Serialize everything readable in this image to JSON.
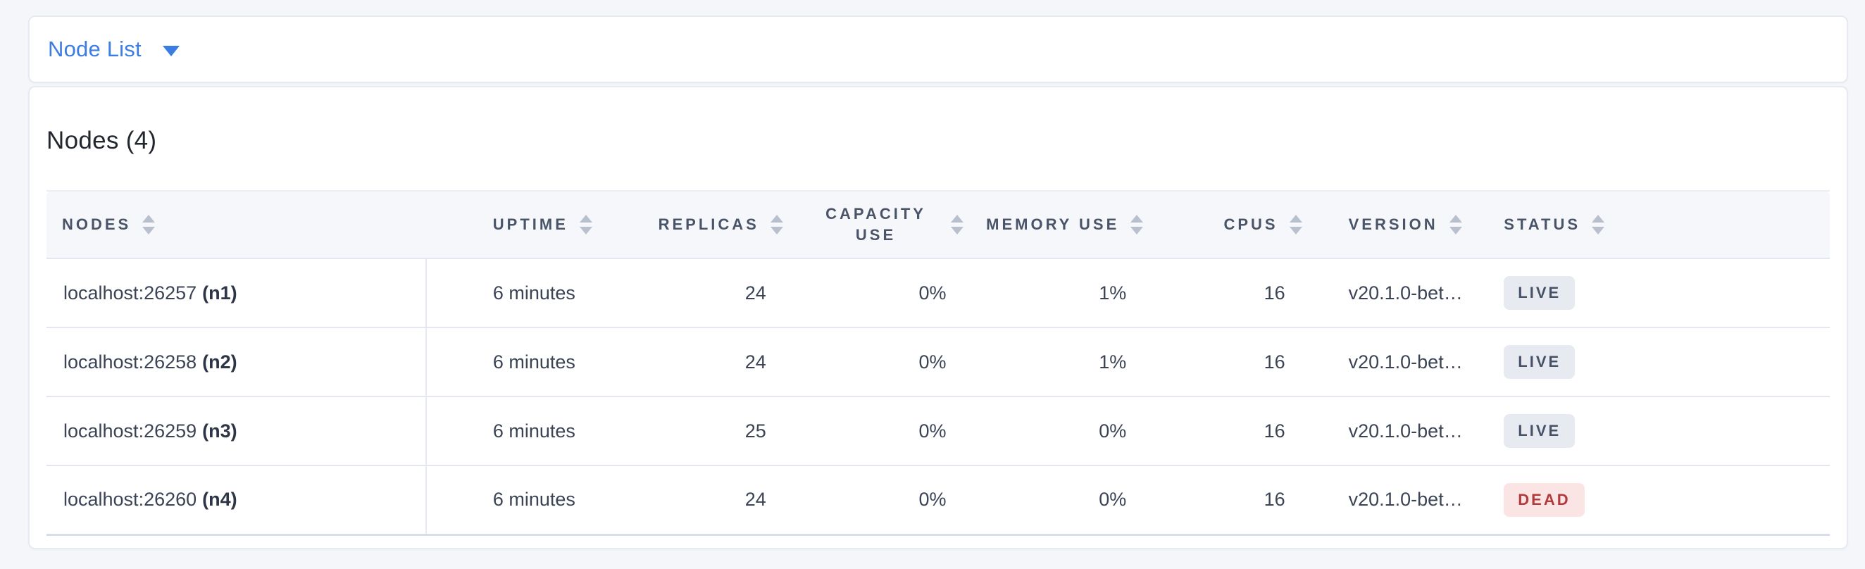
{
  "colors": {
    "page_background": "#f4f6f9",
    "accent_blue": "#3b7de2",
    "header_text": "#4a5468",
    "live_badge_bg": "#e7eaf1",
    "live_badge_text": "#475266",
    "dead_badge_bg": "#fbe5e4",
    "dead_badge_text": "#b23a3d"
  },
  "icons": {
    "caret_down": "caret-down",
    "sort": "sort-arrows"
  },
  "topbar": {
    "view_selector_label": "Node List"
  },
  "main": {
    "heading": "Nodes (4)",
    "table": {
      "columns": [
        {
          "label": "NODES"
        },
        {
          "label": "UPTIME"
        },
        {
          "label": "REPLICAS"
        },
        {
          "label": "CAPACITY USE"
        },
        {
          "label": "MEMORY USE"
        },
        {
          "label": "CPUS"
        },
        {
          "label": "VERSION"
        },
        {
          "label": "STATUS"
        }
      ],
      "rows": [
        {
          "node_address": "localhost:26257",
          "node_id": "(n1)",
          "uptime": "6 minutes",
          "replicas": "24",
          "capacity_use": "0%",
          "memory_use": "1%",
          "cpus": "16",
          "version": "v20.1.0-bet…",
          "status": "LIVE"
        },
        {
          "node_address": "localhost:26258",
          "node_id": "(n2)",
          "uptime": "6 minutes",
          "replicas": "24",
          "capacity_use": "0%",
          "memory_use": "1%",
          "cpus": "16",
          "version": "v20.1.0-bet…",
          "status": "LIVE"
        },
        {
          "node_address": "localhost:26259",
          "node_id": "(n3)",
          "uptime": "6 minutes",
          "replicas": "25",
          "capacity_use": "0%",
          "memory_use": "0%",
          "cpus": "16",
          "version": "v20.1.0-bet…",
          "status": "LIVE"
        },
        {
          "node_address": "localhost:26260",
          "node_id": "(n4)",
          "uptime": "6 minutes",
          "replicas": "24",
          "capacity_use": "0%",
          "memory_use": "0%",
          "cpus": "16",
          "version": "v20.1.0-bet…",
          "status": "DEAD"
        }
      ]
    }
  }
}
